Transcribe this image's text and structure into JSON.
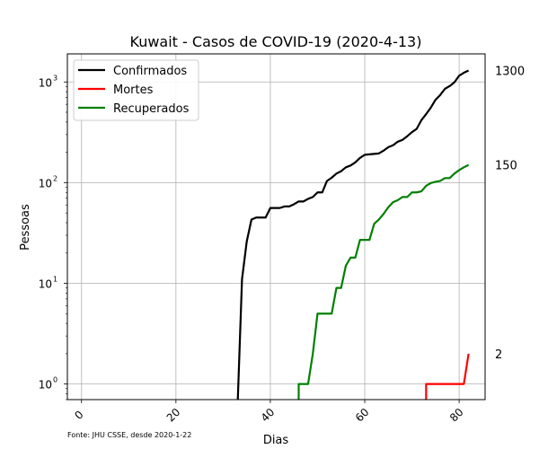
{
  "chart_data": {
    "type": "line",
    "title": "Kuwait - Casos de COVID-19 (2020-4-13)",
    "xlabel": "Dias",
    "ylabel": "Pessoas",
    "xlim": [
      -3,
      85.5
    ],
    "ylim": [
      0.7,
      1900
    ],
    "yscale": "log",
    "grid": true,
    "legend": "upper-left",
    "x_ticks": [
      0,
      20,
      40,
      60,
      80
    ],
    "y_ticks": [
      1,
      10,
      100,
      1000
    ],
    "x_tick_labels": [
      "0",
      "20",
      "40",
      "60",
      "80"
    ],
    "y_tick_labels": [
      "10",
      "10",
      "10",
      "10"
    ],
    "y_tick_exponents": [
      "0",
      "1",
      "2",
      "3"
    ],
    "right_labels": [
      {
        "value": 1300,
        "text": "1300"
      },
      {
        "value": 150,
        "text": "150"
      },
      {
        "value": 2,
        "text": "2"
      }
    ],
    "footnote": "Fonte: JHU CSSE, desde 2020-1-22",
    "series": [
      {
        "name": "Confirmados",
        "color": "#000000",
        "x": [
          33,
          34,
          35,
          36,
          37,
          38,
          39,
          40,
          41,
          42,
          43,
          44,
          45,
          46,
          47,
          48,
          49,
          50,
          51,
          52,
          53,
          54,
          55,
          56,
          57,
          58,
          59,
          60,
          61,
          62,
          63,
          64,
          65,
          66,
          67,
          68,
          69,
          70,
          71,
          72,
          73,
          74,
          75,
          76,
          77,
          78,
          79,
          80,
          81,
          82
        ],
        "y": [
          0.5,
          11,
          26,
          43,
          45,
          45,
          45,
          56,
          56,
          56,
          58,
          58,
          61,
          65,
          65,
          69,
          72,
          80,
          80,
          104,
          112,
          123,
          130,
          142,
          148,
          159,
          176,
          189,
          191,
          193,
          195,
          208,
          225,
          235,
          255,
          266,
          289,
          317,
          342,
          417,
          479,
          556,
          665,
          743,
          855,
          910,
          993,
          1154,
          1234,
          1300
        ]
      },
      {
        "name": "Mortes",
        "color": "#ff0000",
        "x": [
          73,
          73.01,
          74,
          75,
          76,
          77,
          78,
          79,
          80,
          81,
          82
        ],
        "y": [
          0.5,
          1,
          1,
          1,
          1,
          1,
          1,
          1,
          1,
          1,
          2
        ]
      },
      {
        "name": "Recuperados",
        "color": "#008000",
        "x": [
          46,
          46.01,
          47,
          48,
          49,
          50,
          51,
          52,
          53,
          54,
          55,
          56,
          57,
          58,
          59,
          60,
          61,
          62,
          63,
          64,
          65,
          66,
          67,
          68,
          69,
          70,
          71,
          72,
          73,
          74,
          75,
          76,
          77,
          78,
          79,
          80,
          81,
          82
        ],
        "y": [
          0.5,
          1,
          1,
          1,
          2,
          5,
          5,
          5,
          5,
          9,
          9,
          15,
          18,
          18,
          27,
          27,
          27,
          39,
          43,
          49,
          57,
          64,
          67,
          72,
          72,
          80,
          80,
          82,
          93,
          99,
          102,
          104,
          111,
          111,
          123,
          133,
          142,
          150
        ]
      }
    ]
  }
}
